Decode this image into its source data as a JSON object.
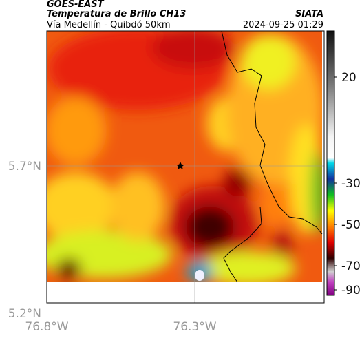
{
  "header": {
    "satellite": "GOES-EAST",
    "product": "Temperatura de Brillo CH13",
    "region": "Vía Medellín - Quibdó 50km",
    "source": "SIATA",
    "timestamp": "2024-09-25 01:29"
  },
  "map": {
    "lat_labels": [
      "5.7°N",
      "5.2°N"
    ],
    "lon_labels": [
      "76.8°W",
      "76.3°W"
    ]
  },
  "colorbar": {
    "ticks": [
      20,
      -30,
      -50,
      -70,
      -90
    ]
  }
}
